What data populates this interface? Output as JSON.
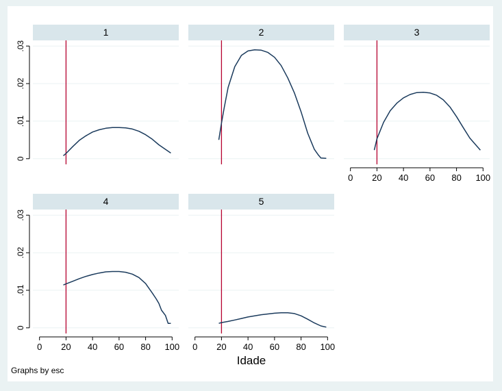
{
  "chart_data": {
    "type": "line",
    "layout": "small-multiples",
    "xlabel": "Idade",
    "ylabel": "",
    "xlim": [
      -5,
      105
    ],
    "ylim": [
      -0.0015,
      0.0315
    ],
    "xticks": [
      0,
      20,
      40,
      60,
      80,
      100
    ],
    "xtick_labels": [
      "0",
      "20",
      "40",
      "60",
      "80",
      "100"
    ],
    "yticks": [
      0,
      0.01,
      0.02,
      0.03
    ],
    "ytick_labels": [
      "0",
      ".01",
      ".02",
      ".03"
    ],
    "grid": "horizontal",
    "reference_line": {
      "x": 20,
      "color": "#b5002e"
    },
    "line_color": "#1a3a5c",
    "note": "Graphs by esc",
    "panels": [
      {
        "label": "1",
        "x": [
          18,
          20,
          25,
          30,
          35,
          40,
          45,
          50,
          55,
          60,
          65,
          70,
          75,
          80,
          85,
          90,
          95,
          99
        ],
        "values": [
          0.0008,
          0.0014,
          0.0032,
          0.0049,
          0.0061,
          0.0071,
          0.0077,
          0.0081,
          0.0083,
          0.0083,
          0.0082,
          0.0079,
          0.0073,
          0.0064,
          0.0052,
          0.0037,
          0.0025,
          0.0015
        ]
      },
      {
        "label": "2",
        "x": [
          18,
          20,
          22,
          25,
          30,
          35,
          40,
          45,
          50,
          55,
          60,
          65,
          70,
          75,
          80,
          85,
          88,
          90,
          93,
          95,
          99
        ],
        "values": [
          0.005,
          0.0095,
          0.0135,
          0.019,
          0.0245,
          0.0275,
          0.0287,
          0.029,
          0.0289,
          0.0283,
          0.027,
          0.0248,
          0.0215,
          0.0175,
          0.0125,
          0.0068,
          0.0042,
          0.0025,
          0.001,
          0.0002,
          0.0001
        ]
      },
      {
        "label": "3",
        "x": [
          18,
          20,
          25,
          30,
          35,
          40,
          45,
          50,
          55,
          60,
          65,
          70,
          75,
          80,
          85,
          90,
          95,
          98
        ],
        "values": [
          0.0023,
          0.0053,
          0.0097,
          0.0128,
          0.0148,
          0.0162,
          0.0171,
          0.0176,
          0.0177,
          0.0175,
          0.0169,
          0.0157,
          0.0138,
          0.0112,
          0.0083,
          0.0055,
          0.0035,
          0.0023
        ]
      },
      {
        "label": "4",
        "x": [
          18,
          20,
          25,
          30,
          35,
          40,
          45,
          50,
          55,
          60,
          65,
          70,
          75,
          80,
          85,
          88,
          90,
          92,
          95,
          97,
          99
        ],
        "values": [
          0.0114,
          0.0117,
          0.0124,
          0.0131,
          0.0137,
          0.0142,
          0.0146,
          0.0149,
          0.015,
          0.015,
          0.0148,
          0.0143,
          0.0134,
          0.0118,
          0.0093,
          0.0077,
          0.0065,
          0.0047,
          0.0033,
          0.0012,
          0.0012
        ]
      },
      {
        "label": "5",
        "x": [
          18,
          20,
          25,
          30,
          35,
          40,
          45,
          50,
          55,
          60,
          65,
          70,
          75,
          80,
          85,
          90,
          95,
          99
        ],
        "values": [
          0.0012,
          0.0014,
          0.0017,
          0.0021,
          0.0025,
          0.0029,
          0.0032,
          0.0035,
          0.0037,
          0.0039,
          0.004,
          0.004,
          0.0038,
          0.0032,
          0.0023,
          0.0013,
          0.0005,
          0.0002
        ]
      }
    ]
  }
}
